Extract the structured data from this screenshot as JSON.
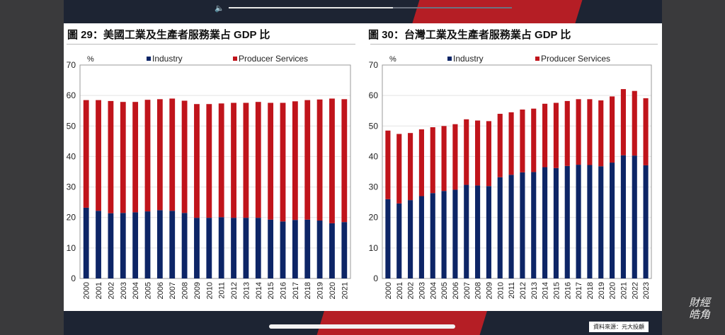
{
  "player": {
    "volume_icon": "volume-icon",
    "progress": 0.58
  },
  "source_label": "資料來源：元大投顧",
  "watermark": "財經皓角",
  "colors": {
    "industry": "#0d2566",
    "producer": "#c0141b"
  },
  "chart_data": [
    {
      "type": "bar",
      "stacked": true,
      "title": "圖 29：美國工業及生產者服務業占 GDP 比",
      "ylabel": "%",
      "ylim": [
        0,
        70
      ],
      "yticks": [
        0,
        10,
        20,
        30,
        40,
        50,
        60,
        70
      ],
      "grid": true,
      "legend": "top",
      "categories": [
        "2000",
        "2001",
        "2002",
        "2003",
        "2004",
        "2005",
        "2006",
        "2007",
        "2008",
        "2009",
        "2010",
        "2011",
        "2012",
        "2013",
        "2014",
        "2015",
        "2016",
        "2017",
        "2018",
        "2019",
        "2020",
        "2021"
      ],
      "series": [
        {
          "name": "Industry",
          "values": [
            23.2,
            22.2,
            21.4,
            21.5,
            21.7,
            22.0,
            22.4,
            22.2,
            21.5,
            19.9,
            19.9,
            20.1,
            19.9,
            19.9,
            19.9,
            19.3,
            18.7,
            19.2,
            19.3,
            19.0,
            18.1,
            18.5
          ]
        },
        {
          "name": "Producer Services",
          "values": [
            35.3,
            36.3,
            36.8,
            36.4,
            36.2,
            36.6,
            36.4,
            36.8,
            36.8,
            37.3,
            37.3,
            37.3,
            37.7,
            37.7,
            38.0,
            38.3,
            38.9,
            38.9,
            39.2,
            39.7,
            40.9,
            40.3
          ]
        }
      ]
    },
    {
      "type": "bar",
      "stacked": true,
      "title": "圖 30：台灣工業及生產者服務業占 GDP 比",
      "ylabel": "%",
      "ylim": [
        0,
        70
      ],
      "yticks": [
        0,
        10,
        20,
        30,
        40,
        50,
        60,
        70
      ],
      "grid": true,
      "legend": "top",
      "categories": [
        "2000",
        "2001",
        "2002",
        "2003",
        "2004",
        "2005",
        "2006",
        "2007",
        "2008",
        "2009",
        "2010",
        "2011",
        "2012",
        "2013",
        "2014",
        "2015",
        "2016",
        "2017",
        "2018",
        "2019",
        "2020",
        "2021",
        "2022",
        "2023"
      ],
      "series": [
        {
          "name": "Industry",
          "values": [
            26.0,
            24.6,
            25.7,
            27.0,
            28.0,
            28.7,
            29.1,
            30.7,
            30.5,
            30.3,
            33.2,
            34.0,
            34.8,
            34.9,
            36.5,
            36.2,
            36.9,
            37.3,
            37.2,
            36.8,
            38.0,
            40.4,
            40.3,
            37.1
          ]
        },
        {
          "name": "Producer Services",
          "values": [
            22.5,
            22.8,
            22.0,
            21.9,
            21.6,
            21.3,
            21.5,
            21.5,
            21.3,
            21.3,
            20.8,
            20.5,
            20.6,
            20.8,
            20.8,
            21.4,
            21.3,
            21.5,
            21.6,
            21.6,
            21.7,
            21.7,
            21.2,
            22.0
          ]
        }
      ]
    }
  ]
}
